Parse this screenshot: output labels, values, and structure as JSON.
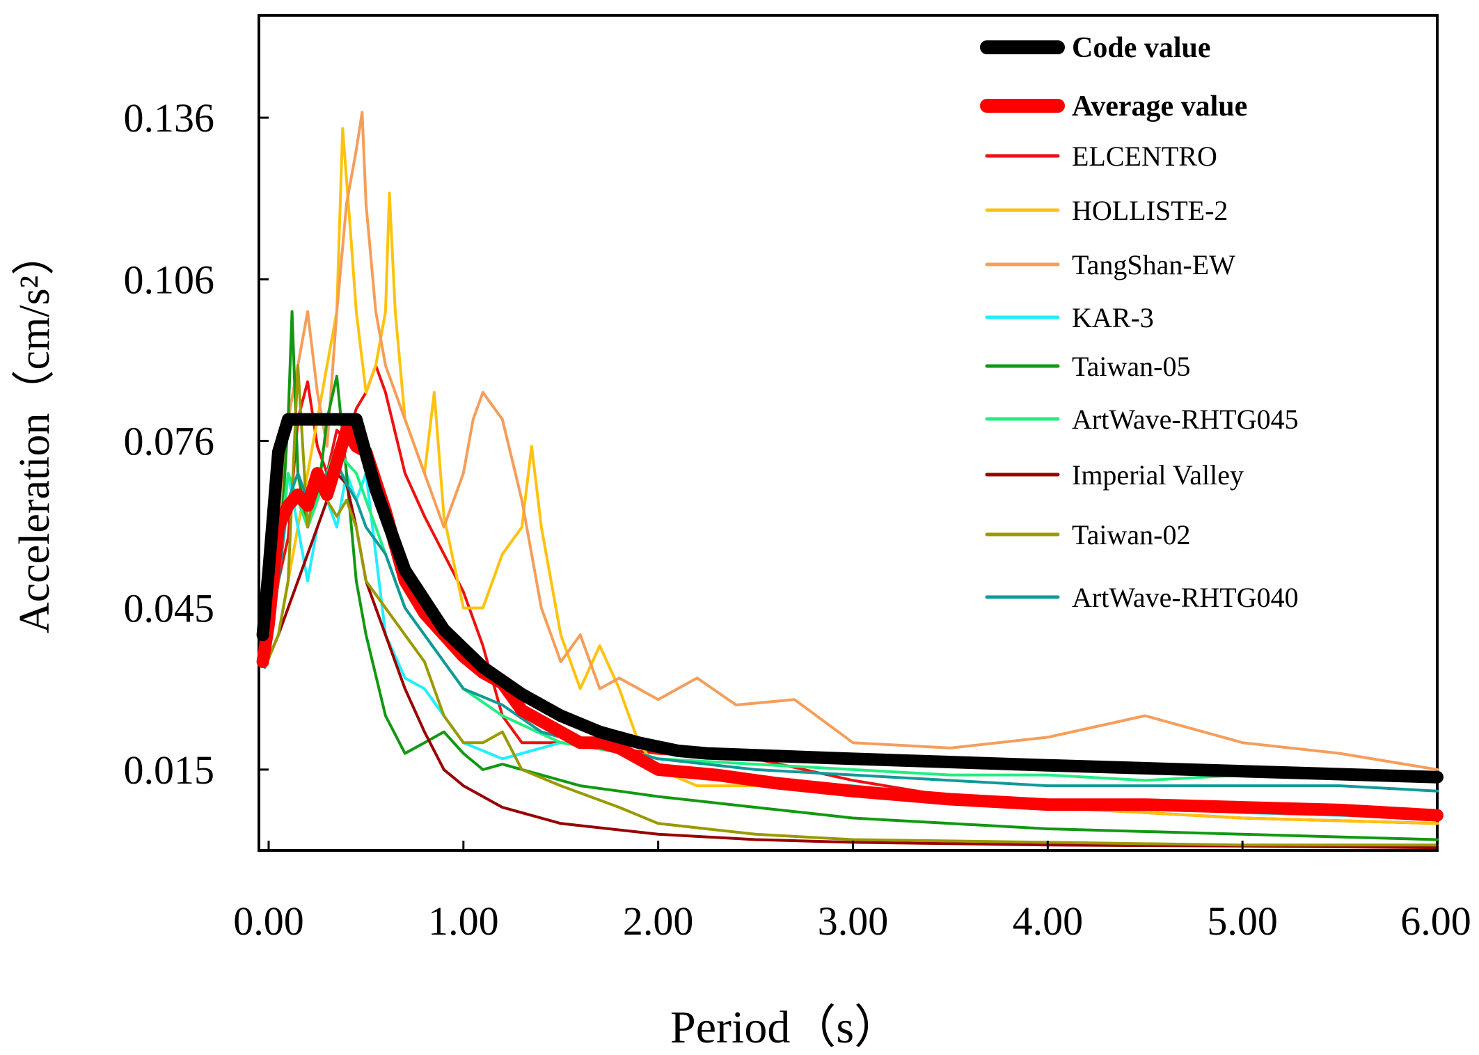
{
  "chart_data": {
    "type": "line",
    "xlabel": "Period（s）",
    "ylabel": "Acceleration（cm/s²）",
    "xlim": [
      -0.05,
      6.0
    ],
    "ylim": [
      0.0,
      0.155
    ],
    "x_ticks": [
      0,
      1,
      2,
      3,
      4,
      5,
      6
    ],
    "x_tick_labels": [
      "0.00",
      "1.00",
      "2.00",
      "3.00",
      "4.00",
      "5.00",
      "6.00"
    ],
    "y_ticks": [
      0.015,
      0.045,
      0.076,
      0.106,
      0.136
    ],
    "y_tick_labels": [
      "0.015",
      "0.045",
      "0.076",
      "0.106",
      "0.136"
    ],
    "grid": false,
    "legend_position": "top-right",
    "series": [
      {
        "name": "Code value",
        "color": "#000000",
        "bold": true,
        "x": [
          -0.03,
          0.0,
          0.05,
          0.1,
          0.45,
          0.55,
          0.7,
          0.9,
          1.1,
          1.3,
          1.5,
          1.7,
          1.9,
          2.1,
          2.25,
          3.0,
          4.0,
          5.0,
          6.0
        ],
        "y": [
          0.04,
          0.052,
          0.074,
          0.08,
          0.08,
          0.067,
          0.052,
          0.041,
          0.034,
          0.029,
          0.025,
          0.022,
          0.02,
          0.0185,
          0.018,
          0.017,
          0.0158,
          0.0147,
          0.0136
        ]
      },
      {
        "name": "Average value",
        "color": "#ff0000",
        "bold": true,
        "x": [
          -0.03,
          0.0,
          0.05,
          0.1,
          0.15,
          0.2,
          0.25,
          0.3,
          0.35,
          0.4,
          0.45,
          0.5,
          0.6,
          0.7,
          0.8,
          0.9,
          1.0,
          1.1,
          1.2,
          1.3,
          1.4,
          1.5,
          1.6,
          1.7,
          1.8,
          1.9,
          2.0,
          2.3,
          2.6,
          3.0,
          3.5,
          4.0,
          4.5,
          5.0,
          5.5,
          6.0
        ],
        "y": [
          0.035,
          0.042,
          0.06,
          0.064,
          0.066,
          0.064,
          0.07,
          0.066,
          0.072,
          0.078,
          0.075,
          0.074,
          0.063,
          0.05,
          0.044,
          0.04,
          0.036,
          0.033,
          0.031,
          0.026,
          0.024,
          0.022,
          0.02,
          0.02,
          0.019,
          0.017,
          0.015,
          0.014,
          0.0125,
          0.011,
          0.0095,
          0.0085,
          0.0085,
          0.008,
          0.0075,
          0.0065
        ]
      },
      {
        "name": "ELCENTRO",
        "color": "#ee1111",
        "x": [
          -0.02,
          0.05,
          0.1,
          0.15,
          0.2,
          0.25,
          0.3,
          0.35,
          0.4,
          0.45,
          0.5,
          0.55,
          0.6,
          0.7,
          0.8,
          0.9,
          1.0,
          1.1,
          1.2,
          1.3,
          1.5,
          2.0,
          2.5,
          3.0,
          3.5,
          4.0,
          4.5,
          5.0,
          5.5,
          6.0
        ],
        "y": [
          0.034,
          0.05,
          0.058,
          0.08,
          0.087,
          0.075,
          0.07,
          0.078,
          0.076,
          0.082,
          0.085,
          0.09,
          0.085,
          0.07,
          0.062,
          0.055,
          0.048,
          0.038,
          0.025,
          0.02,
          0.02,
          0.018,
          0.017,
          0.013,
          0.01,
          0.008,
          0.007,
          0.006,
          0.0055,
          0.005
        ]
      },
      {
        "name": "HOLLISTE-2",
        "color": "#ffc20e",
        "x": [
          -0.02,
          0.05,
          0.1,
          0.15,
          0.2,
          0.25,
          0.3,
          0.35,
          0.38,
          0.42,
          0.45,
          0.5,
          0.55,
          0.6,
          0.62,
          0.65,
          0.7,
          0.8,
          0.85,
          0.9,
          1.0,
          1.1,
          1.2,
          1.3,
          1.35,
          1.4,
          1.5,
          1.6,
          1.7,
          1.8,
          1.9,
          2.0,
          2.2,
          2.5,
          3.0,
          3.5,
          4.0,
          5.0,
          6.0
        ],
        "y": [
          0.034,
          0.04,
          0.05,
          0.06,
          0.07,
          0.08,
          0.09,
          0.1,
          0.134,
          0.115,
          0.1,
          0.085,
          0.09,
          0.1,
          0.122,
          0.1,
          0.08,
          0.07,
          0.085,
          0.062,
          0.045,
          0.045,
          0.055,
          0.06,
          0.075,
          0.06,
          0.04,
          0.03,
          0.038,
          0.03,
          0.02,
          0.015,
          0.012,
          0.012,
          0.011,
          0.009,
          0.008,
          0.006,
          0.005
        ]
      },
      {
        "name": "TangShan-EW",
        "color": "#f59e5a",
        "x": [
          -0.02,
          0.05,
          0.1,
          0.15,
          0.2,
          0.25,
          0.3,
          0.35,
          0.4,
          0.45,
          0.48,
          0.5,
          0.55,
          0.6,
          0.7,
          0.8,
          0.9,
          1.0,
          1.05,
          1.1,
          1.2,
          1.3,
          1.4,
          1.5,
          1.6,
          1.7,
          1.8,
          1.9,
          2.0,
          2.1,
          2.2,
          2.4,
          2.7,
          3.0,
          3.5,
          4.0,
          4.5,
          5.0,
          5.5,
          6.0
        ],
        "y": [
          0.034,
          0.06,
          0.08,
          0.09,
          0.1,
          0.085,
          0.075,
          0.1,
          0.12,
          0.13,
          0.137,
          0.12,
          0.1,
          0.09,
          0.08,
          0.07,
          0.06,
          0.07,
          0.08,
          0.085,
          0.08,
          0.065,
          0.045,
          0.035,
          0.04,
          0.03,
          0.032,
          0.03,
          0.028,
          0.03,
          0.032,
          0.027,
          0.028,
          0.02,
          0.019,
          0.021,
          0.025,
          0.02,
          0.018,
          0.015
        ]
      },
      {
        "name": "KAR-3",
        "color": "#22eeff",
        "x": [
          -0.02,
          0.05,
          0.1,
          0.15,
          0.2,
          0.25,
          0.3,
          0.35,
          0.4,
          0.45,
          0.5,
          0.6,
          0.7,
          0.8,
          0.9,
          1.0,
          1.2,
          1.5,
          1.8,
          2.0,
          2.5,
          3.0,
          3.5,
          4.0,
          5.0,
          6.0
        ],
        "y": [
          0.034,
          0.05,
          0.07,
          0.06,
          0.05,
          0.06,
          0.065,
          0.06,
          0.07,
          0.065,
          0.07,
          0.04,
          0.032,
          0.03,
          0.025,
          0.02,
          0.017,
          0.02,
          0.02,
          0.016,
          0.013,
          0.012,
          0.01,
          0.009,
          0.007,
          0.006
        ]
      },
      {
        "name": "Taiwan-05",
        "color": "#129812",
        "x": [
          -0.02,
          0.05,
          0.1,
          0.12,
          0.15,
          0.2,
          0.25,
          0.3,
          0.35,
          0.4,
          0.45,
          0.5,
          0.6,
          0.7,
          0.8,
          0.9,
          1.0,
          1.1,
          1.2,
          1.4,
          1.6,
          1.8,
          2.0,
          2.5,
          3.0,
          3.5,
          4.0,
          5.0,
          6.0
        ],
        "y": [
          0.034,
          0.05,
          0.08,
          0.1,
          0.07,
          0.06,
          0.065,
          0.08,
          0.088,
          0.07,
          0.05,
          0.04,
          0.025,
          0.018,
          0.02,
          0.022,
          0.018,
          0.015,
          0.016,
          0.014,
          0.012,
          0.011,
          0.01,
          0.008,
          0.006,
          0.005,
          0.004,
          0.003,
          0.002
        ]
      },
      {
        "name": "ArtWave-RHTG045",
        "color": "#22ee80",
        "x": [
          -0.02,
          0.05,
          0.1,
          0.15,
          0.2,
          0.25,
          0.3,
          0.35,
          0.4,
          0.45,
          0.5,
          0.6,
          0.7,
          0.8,
          0.9,
          1.0,
          1.2,
          1.5,
          2.0,
          2.5,
          3.0,
          3.5,
          4.0,
          4.5,
          5.0,
          5.5,
          6.0
        ],
        "y": [
          0.034,
          0.055,
          0.07,
          0.065,
          0.06,
          0.065,
          0.07,
          0.075,
          0.072,
          0.07,
          0.065,
          0.055,
          0.045,
          0.04,
          0.035,
          0.03,
          0.025,
          0.02,
          0.017,
          0.016,
          0.015,
          0.014,
          0.014,
          0.013,
          0.014,
          0.014,
          0.013
        ]
      },
      {
        "name": "Imperial Valley",
        "color": "#990000",
        "x": [
          -0.02,
          0.05,
          0.1,
          0.15,
          0.2,
          0.25,
          0.3,
          0.35,
          0.4,
          0.45,
          0.5,
          0.6,
          0.7,
          0.8,
          0.9,
          1.0,
          1.2,
          1.5,
          2.0,
          2.5,
          3.0,
          4.0,
          5.0,
          6.0
        ],
        "y": [
          0.034,
          0.04,
          0.045,
          0.05,
          0.055,
          0.06,
          0.065,
          0.07,
          0.068,
          0.06,
          0.05,
          0.04,
          0.03,
          0.022,
          0.015,
          0.012,
          0.008,
          0.005,
          0.003,
          0.002,
          0.0015,
          0.001,
          0.0008,
          0.0005
        ]
      },
      {
        "name": "Taiwan-02",
        "color": "#999900",
        "x": [
          -0.02,
          0.05,
          0.1,
          0.15,
          0.2,
          0.25,
          0.3,
          0.35,
          0.4,
          0.45,
          0.5,
          0.6,
          0.7,
          0.8,
          0.9,
          1.0,
          1.1,
          1.2,
          1.3,
          1.5,
          1.8,
          2.0,
          2.5,
          3.0,
          4.0,
          5.0,
          6.0
        ],
        "y": [
          0.034,
          0.04,
          0.05,
          0.09,
          0.06,
          0.07,
          0.065,
          0.062,
          0.065,
          0.06,
          0.05,
          0.045,
          0.04,
          0.035,
          0.025,
          0.02,
          0.02,
          0.022,
          0.015,
          0.012,
          0.008,
          0.005,
          0.003,
          0.002,
          0.0015,
          0.001,
          0.001
        ]
      },
      {
        "name": "ArtWave-RHTG040",
        "color": "#119999",
        "x": [
          -0.02,
          0.05,
          0.1,
          0.15,
          0.2,
          0.25,
          0.3,
          0.35,
          0.4,
          0.45,
          0.5,
          0.6,
          0.7,
          0.8,
          0.9,
          1.0,
          1.2,
          1.4,
          1.6,
          1.8,
          2.0,
          2.5,
          3.0,
          3.5,
          4.0,
          4.5,
          5.0,
          5.5,
          6.0
        ],
        "y": [
          0.034,
          0.05,
          0.065,
          0.07,
          0.065,
          0.068,
          0.07,
          0.072,
          0.068,
          0.065,
          0.06,
          0.055,
          0.045,
          0.04,
          0.035,
          0.03,
          0.027,
          0.022,
          0.02,
          0.019,
          0.017,
          0.015,
          0.014,
          0.013,
          0.012,
          0.012,
          0.012,
          0.012,
          0.011
        ]
      }
    ]
  }
}
